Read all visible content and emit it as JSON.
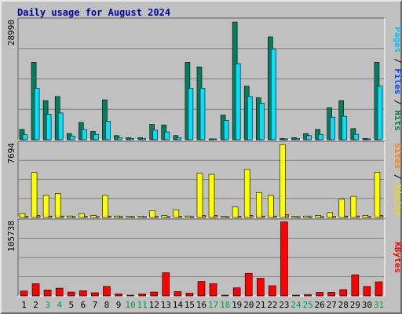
{
  "chart_data": {
    "title": "Daily usage for August 2024",
    "days": [
      "1",
      "2",
      "3",
      "4",
      "5",
      "6",
      "7",
      "8",
      "9",
      "10",
      "11",
      "12",
      "13",
      "14",
      "15",
      "16",
      "17",
      "18",
      "19",
      "20",
      "21",
      "22",
      "23",
      "24",
      "25",
      "26",
      "27",
      "28",
      "29",
      "30",
      "31"
    ],
    "weekend_days": [
      "3",
      "4",
      "10",
      "11",
      "17",
      "18",
      "24",
      "25",
      "31"
    ],
    "panels": [
      {
        "name": "hits-files-pages",
        "type": "bar",
        "ymax_label": "28990",
        "ymax": 28990,
        "ylabel_parts": [
          {
            "text": "Pages",
            "color": "#00c0ff"
          },
          {
            "text": " / ",
            "color": "#000000"
          },
          {
            "text": "Files",
            "color": "#0040ff"
          },
          {
            "text": " / ",
            "color": "#000000"
          },
          {
            "text": "Hits",
            "color": "#008040"
          }
        ],
        "series": [
          {
            "name": "Hits",
            "color": "#008060",
            "values": [
              2500,
              18800,
              9500,
              10500,
              1500,
              4200,
              2000,
              9700,
              1000,
              500,
              500,
              3700,
              3600,
              1000,
              18800,
              17700,
              200,
              6000,
              28600,
              13000,
              10200,
              25000,
              300,
              500,
              1500,
              2500,
              7800,
              9500,
              2700,
              300,
              18800
            ]
          },
          {
            "name": "Files",
            "color": "#0040ff",
            "values": [
              600,
              1500,
              600,
              700,
              200,
              300,
              200,
              500,
              100,
              50,
              50,
              300,
              300,
              100,
              1500,
              1300,
              50,
              500,
              2000,
              1200,
              900,
              2500,
              50,
              50,
              100,
              200,
              600,
              700,
              200,
              50,
              1500
            ]
          },
          {
            "name": "Pages",
            "color": "#00e0ff",
            "values": [
              1200,
              12500,
              6200,
              6500,
              900,
              2500,
              1300,
              4500,
              500,
              300,
              300,
              2300,
              1900,
              500,
              12500,
              12500,
              200,
              4700,
              18500,
              10500,
              8900,
              22000,
              200,
              300,
              1000,
              1300,
              5500,
              5700,
              1300,
              200,
              13000
            ]
          }
        ]
      },
      {
        "name": "visits-sites",
        "type": "bar",
        "ymax_label": "7694",
        "ymax": 7694,
        "ylabel_parts": [
          {
            "text": "Sites",
            "color": "#ff8000"
          },
          {
            "text": " / ",
            "color": "#000000"
          },
          {
            "text": "Visits",
            "color": "#e0e000"
          }
        ],
        "series": [
          {
            "name": "Visits",
            "color": "#ffff00",
            "values": [
              400,
              4700,
              2300,
              2500,
              150,
              400,
              200,
              2300,
              150,
              100,
              100,
              700,
              200,
              800,
              150,
              4600,
              4500,
              100,
              1100,
              5000,
              2600,
              2300,
              7600,
              100,
              150,
              200,
              500,
              1900,
              2200,
              200,
              4700
            ]
          },
          {
            "name": "Sites",
            "color": "#ff8000",
            "values": [
              100,
              200,
              150,
              150,
              50,
              100,
              50,
              150,
              50,
              50,
              50,
              100,
              50,
              100,
              50,
              200,
              200,
              50,
              100,
              200,
              150,
              150,
              300,
              50,
              50,
              50,
              100,
              150,
              150,
              50,
              200
            ]
          }
        ]
      },
      {
        "name": "kbytes",
        "type": "bar",
        "ymax_label": "105738",
        "ymax": 105738,
        "ylabel_parts": [
          {
            "text": "KBytes",
            "color": "#ff0000"
          }
        ],
        "series": [
          {
            "name": "KBytes",
            "color": "#ff0000",
            "values": [
              7000,
              17500,
              8500,
              11000,
              5500,
              7500,
              4500,
              13500,
              3000,
              300,
              3000,
              5500,
              33000,
              6200,
              4000,
              20500,
              17500,
              500,
              11500,
              32000,
              25000,
              14500,
              105000,
              300,
              2000,
              5000,
              5000,
              9000,
              30000,
              13500,
              20000
            ]
          }
        ]
      }
    ]
  }
}
